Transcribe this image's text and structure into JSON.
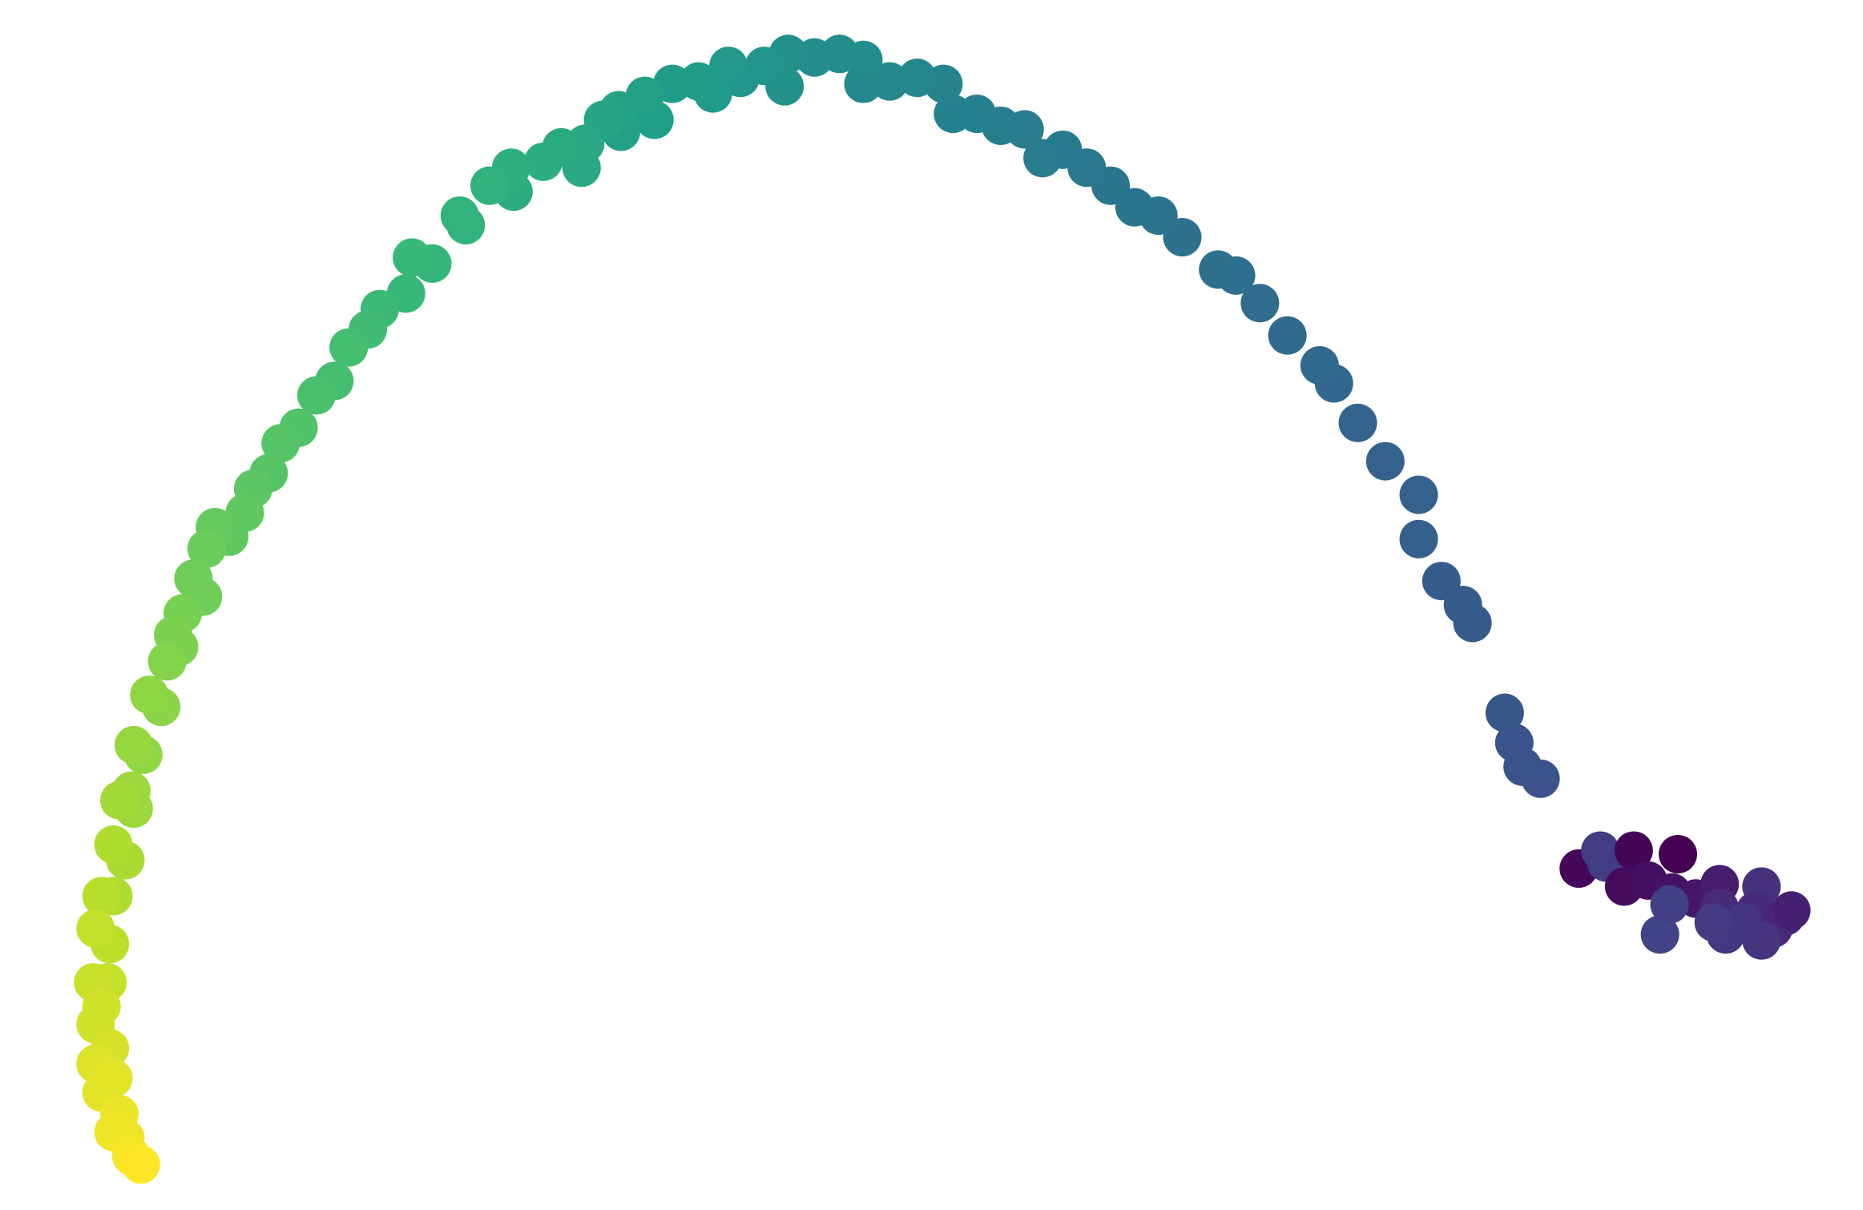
{
  "chart_data": {
    "type": "scatter",
    "x": [
      1322,
      1340,
      1345,
      1368,
      1360,
      1380,
      1405,
      1400,
      1420,
      1440,
      1440,
      1475,
      1470,
      1495,
      1485,
      1460,
      1445,
      1475,
      1390,
      1398,
      1435,
      1500,
      1290,
      1275,
      1268,
      1260,
      1233,
      1225,
      1207,
      1188,
      1188,
      1160,
      1137,
      1117,
      1105,
      1078,
      1055,
      1035,
      1020,
      990,
      970,
      950,
      930,
      910,
      890,
      873,
      858,
      838,
      818,
      798,
      790,
      768,
      745,
      723,
      723,
      703,
      682,
      660,
      657,
      640,
      620,
      610,
      597,
      585,
      563,
      548,
      540,
      520,
      518,
      505,
      487,
      490,
      470,
      455,
      430,
      428,
      410,
      390,
      385,
      362,
      345,
      340,
      318,
      308,
      292,
      280,
      265,
      250,
      235,
      225,
      212,
      205,
      192,
      180,
      173,
      170,
      162,
      153,
      150,
      145,
      140,
      135,
      125,
      120,
      112,
      110,
      112,
      100,
      105,
      95,
      95,
      85,
      92,
      80,
      90,
      78,
      85,
      80,
      92,
      80,
      95,
      85,
      100,
      95,
      105,
      110,
      118
    ],
    "y": [
      725,
      710,
      720,
      710,
      740,
      735,
      713,
      745,
      750,
      738,
      758,
      740,
      760,
      765,
      775,
      770,
      780,
      785,
      780,
      755,
      770,
      760,
      650,
      640,
      620,
      595,
      520,
      505,
      485,
      450,
      413,
      385,
      353,
      320,
      305,
      280,
      253,
      230,
      225,
      198,
      180,
      173,
      155,
      140,
      125,
      132,
      108,
      105,
      95,
      95,
      70,
      65,
      68,
      70,
      50,
      45,
      48,
      45,
      72,
      55,
      65,
      55,
      78,
      68,
      70,
      100,
      80,
      110,
      92,
      100,
      140,
      120,
      123,
      135,
      160,
      140,
      155,
      188,
      180,
      220,
      215,
      245,
      258,
      275,
      290,
      318,
      330,
      357,
      370,
      395,
      408,
      428,
      448,
      440,
      458,
      498,
      483,
      512,
      540,
      530,
      552,
      590,
      580,
      630,
      622,
      660,
      675,
      668,
      718,
      705,
      748,
      748,
      788,
      775,
      820,
      820,
      840,
      855,
      875,
      888,
      900,
      912,
      930,
      945,
      950,
      965,
      972
    ],
    "c": [
      0.02,
      0.18,
      0.18,
      0.01,
      0.03,
      0.04,
      0.0,
      0.05,
      0.06,
      0.08,
      0.12,
      0.14,
      0.12,
      0.1,
      0.11,
      0.15,
      0.16,
      0.15,
      0.2,
      0.19,
      0.17,
      0.09,
      0.25,
      0.26,
      0.26,
      0.27,
      0.28,
      0.29,
      0.29,
      0.3,
      0.31,
      0.31,
      0.32,
      0.33,
      0.34,
      0.34,
      0.35,
      0.36,
      0.37,
      0.37,
      0.38,
      0.39,
      0.39,
      0.4,
      0.41,
      0.42,
      0.42,
      0.43,
      0.44,
      0.44,
      0.45,
      0.46,
      0.47,
      0.47,
      0.48,
      0.49,
      0.49,
      0.5,
      0.51,
      0.52,
      0.52,
      0.53,
      0.54,
      0.55,
      0.55,
      0.56,
      0.57,
      0.57,
      0.58,
      0.59,
      0.6,
      0.6,
      0.61,
      0.62,
      0.62,
      0.63,
      0.64,
      0.65,
      0.65,
      0.66,
      0.67,
      0.67,
      0.68,
      0.69,
      0.7,
      0.7,
      0.71,
      0.72,
      0.73,
      0.73,
      0.74,
      0.75,
      0.75,
      0.76,
      0.77,
      0.78,
      0.78,
      0.79,
      0.8,
      0.8,
      0.81,
      0.82,
      0.83,
      0.83,
      0.84,
      0.85,
      0.85,
      0.86,
      0.87,
      0.88,
      0.88,
      0.89,
      0.9,
      0.91,
      0.91,
      0.92,
      0.93,
      0.93,
      0.94,
      0.95,
      0.96,
      0.96,
      0.97,
      0.98,
      0.98,
      0.99,
      1.0
    ],
    "cmap": "viridis",
    "xlim": [
      0,
      1560
    ],
    "ylim": [
      1010,
      0
    ]
  }
}
